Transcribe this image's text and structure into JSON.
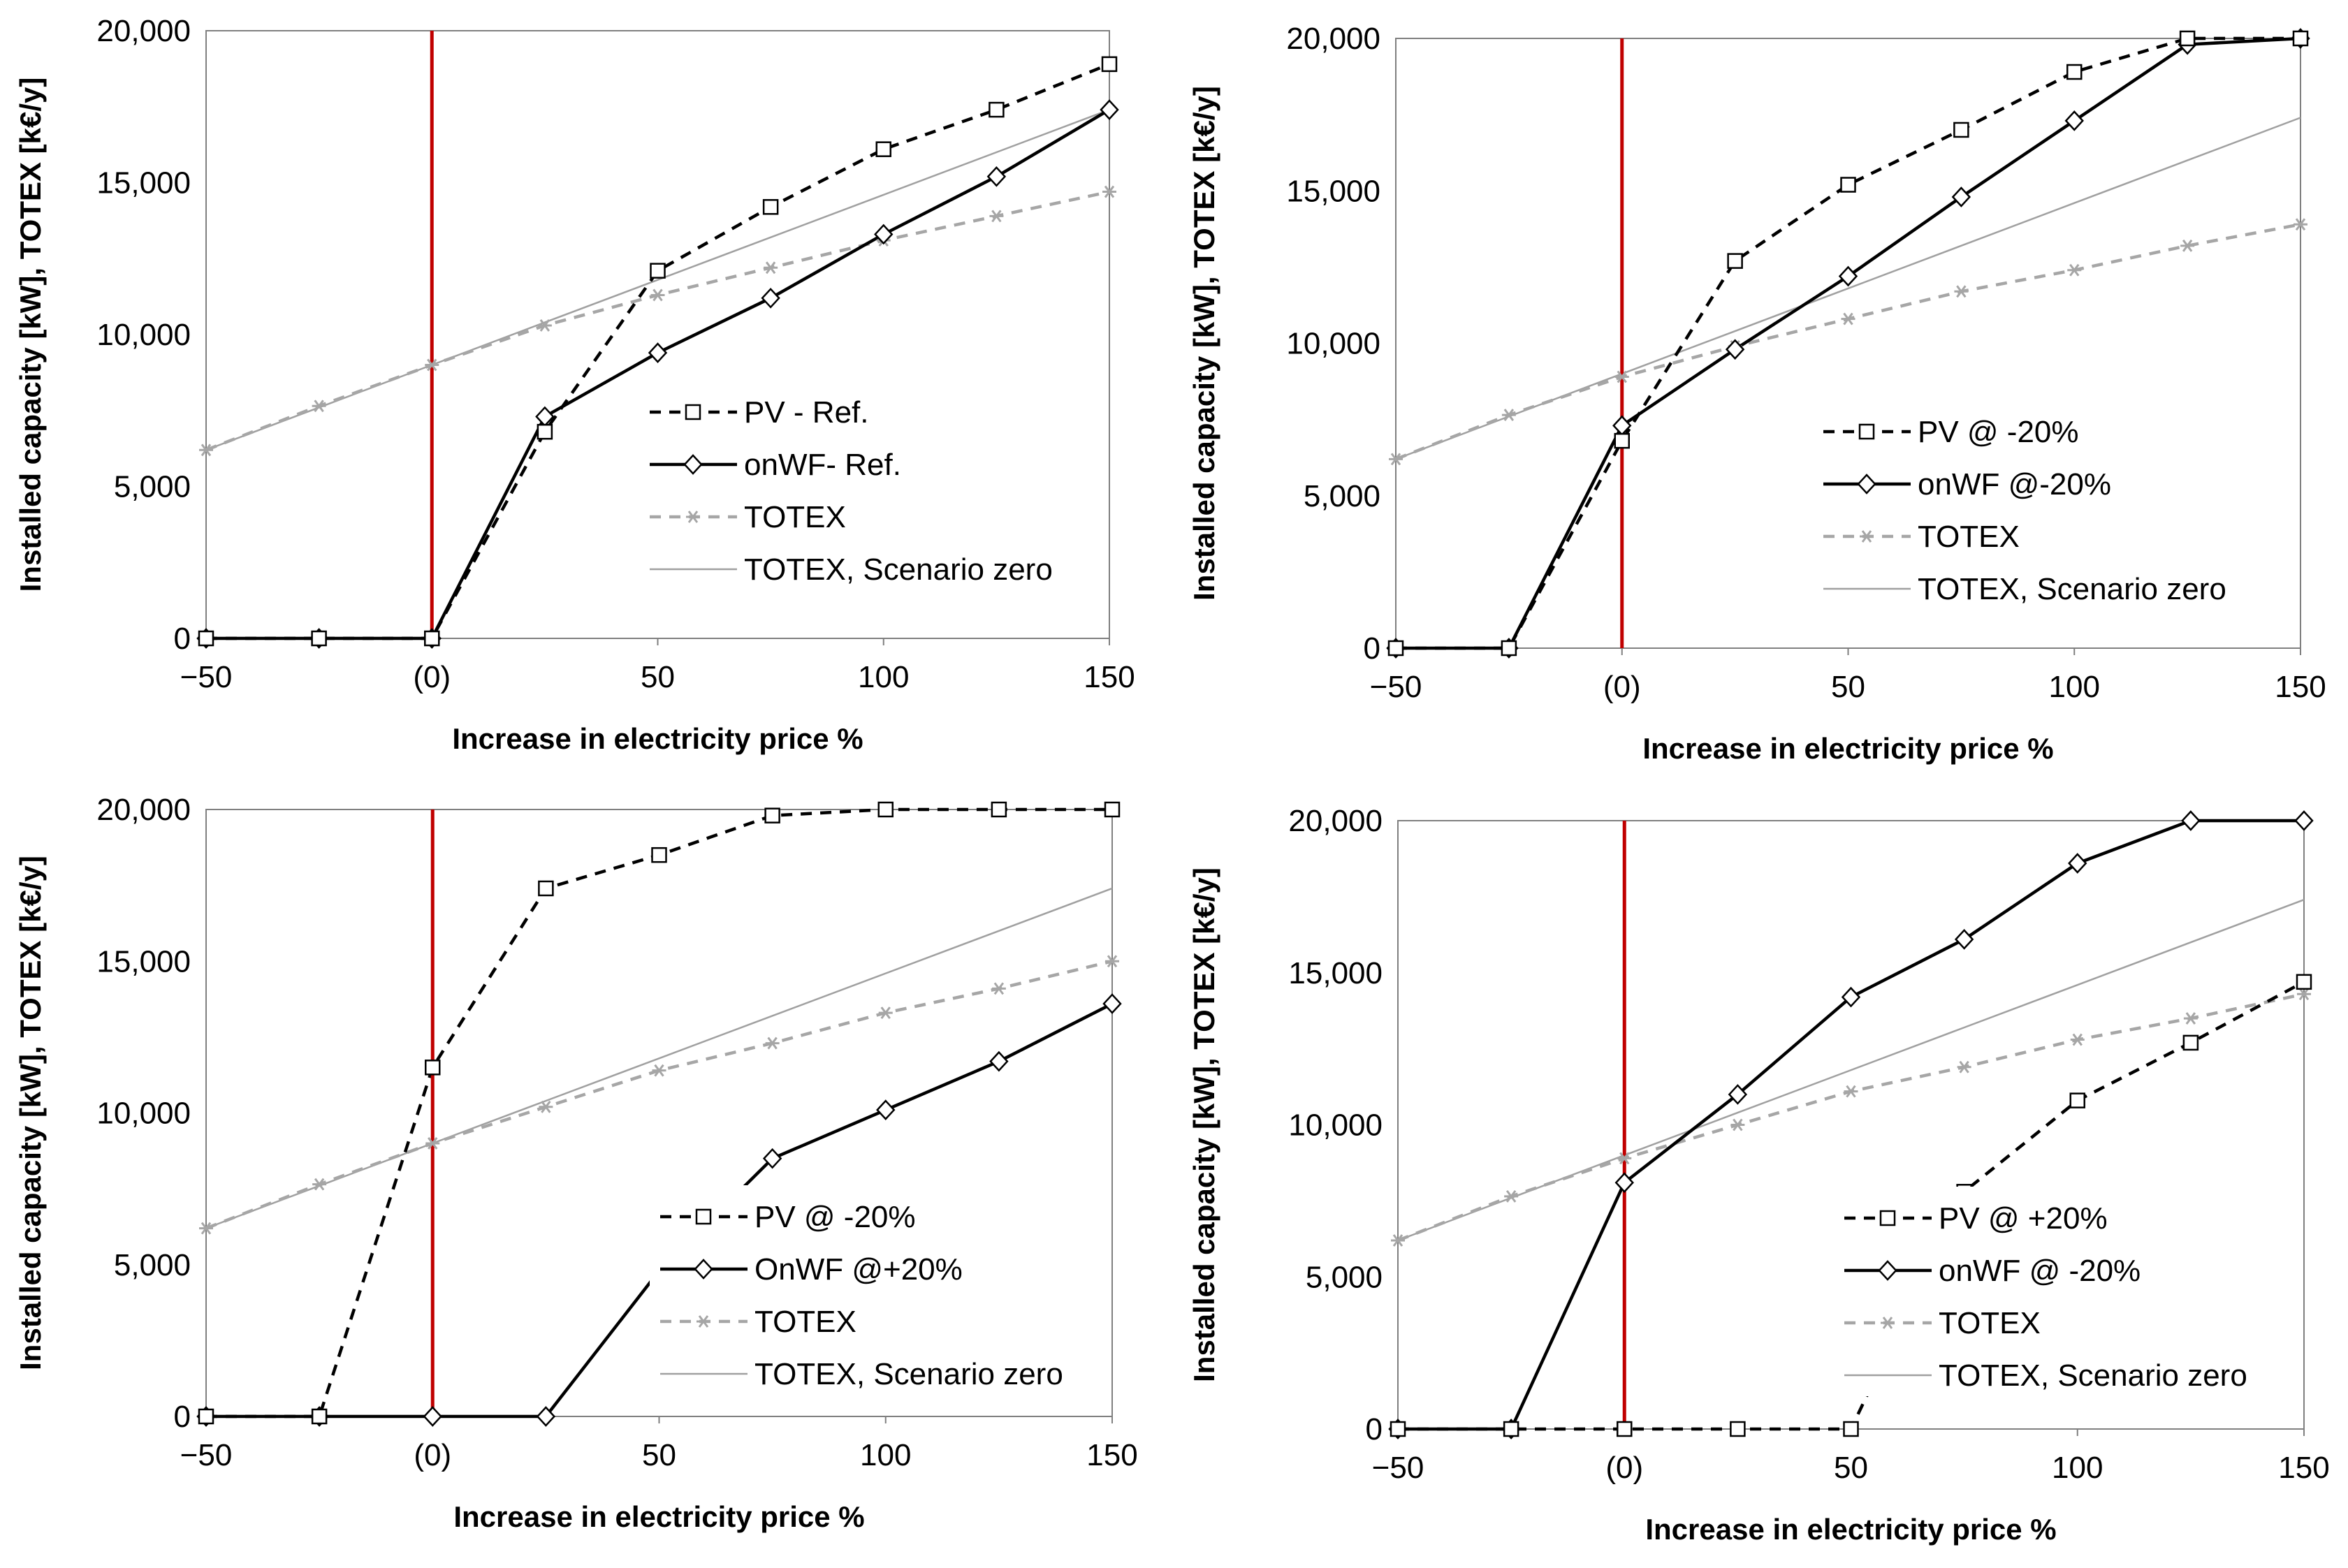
{
  "colors": {
    "black": "#000000",
    "dashed_gray": "#a6a6a6",
    "line_gray": "#a0a0a0",
    "reference_red": "#c00000",
    "axis_gray": "#7f7f7f"
  },
  "chart_data": [
    {
      "type": "line",
      "xlabel": "Increase in electricity price %",
      "ylabel": "Installed capacity [kW], TOTEX [k€/y]",
      "x": [
        -50,
        -25,
        0,
        25,
        50,
        75,
        100,
        125,
        150
      ],
      "x_tick_labels": [
        "−50",
        "(0)",
        "50",
        "100",
        "150"
      ],
      "x_tick_values": [
        -50,
        0,
        50,
        100,
        150
      ],
      "y_tick_labels": [
        "0",
        "5,000",
        "10,000",
        "15,000",
        "20,000"
      ],
      "xlim": [
        -50,
        150
      ],
      "ylim": [
        0,
        20000
      ],
      "reference_line_x": 0,
      "legend_position": "center-right",
      "series": [
        {
          "name": "PV - Ref.",
          "style": "dashed-square",
          "values": [
            0,
            0,
            0,
            6800,
            12100,
            14200,
            16100,
            17400,
            18900
          ]
        },
        {
          "name": "onWF- Ref.",
          "style": "solid-diamond",
          "values": [
            0,
            0,
            0,
            7300,
            9400,
            11200,
            13300,
            15200,
            17400
          ]
        },
        {
          "name": "TOTEX",
          "style": "dashed-asterisk",
          "values": [
            6200,
            7650,
            9000,
            10300,
            11300,
            12200,
            13100,
            13900,
            14700
          ]
        },
        {
          "name": "TOTEX, Scenario zero",
          "style": "thin-line",
          "values": [
            6200,
            7600,
            9000,
            10400,
            11800,
            13200,
            14600,
            16000,
            17400
          ]
        }
      ]
    },
    {
      "type": "line",
      "xlabel": "Increase in electricity price %",
      "ylabel": "Installed capacity [kW], TOTEX [k€/y]",
      "x": [
        -50,
        -25,
        0,
        25,
        50,
        75,
        100,
        125,
        150
      ],
      "x_tick_labels": [
        "−50",
        "(0)",
        "50",
        "100",
        "150"
      ],
      "x_tick_values": [
        -50,
        0,
        50,
        100,
        150
      ],
      "y_tick_labels": [
        "0",
        "5,000",
        "10,000",
        "15,000",
        "20,000"
      ],
      "xlim": [
        -50,
        150
      ],
      "ylim": [
        0,
        20000
      ],
      "reference_line_x": 0,
      "legend_position": "bottom-right",
      "series": [
        {
          "name": "PV @ -20%",
          "style": "dashed-square",
          "values": [
            0,
            0,
            6800,
            12700,
            15200,
            17000,
            18900,
            20000,
            20000
          ]
        },
        {
          "name": "onWF @-20%",
          "style": "solid-diamond",
          "values": [
            0,
            0,
            7300,
            9800,
            12200,
            14800,
            17300,
            19800,
            20000
          ]
        },
        {
          "name": "TOTEX",
          "style": "dashed-asterisk",
          "values": [
            6200,
            7650,
            8900,
            9900,
            10800,
            11700,
            12400,
            13200,
            13900
          ]
        },
        {
          "name": "TOTEX, Scenario zero",
          "style": "thin-line",
          "values": [
            6200,
            7600,
            9000,
            10400,
            11800,
            13200,
            14600,
            16000,
            17400
          ]
        }
      ]
    },
    {
      "type": "line",
      "xlabel": "Increase in electricity price %",
      "ylabel": "Installed capacity [kW], TOTEX [k€/y]",
      "x": [
        -50,
        -25,
        0,
        25,
        50,
        75,
        100,
        125,
        150
      ],
      "x_tick_labels": [
        "−50",
        "(0)",
        "50",
        "100",
        "150"
      ],
      "x_tick_values": [
        -50,
        0,
        50,
        100,
        150
      ],
      "y_tick_labels": [
        "0",
        "5,000",
        "10,000",
        "15,000",
        "20,000"
      ],
      "xlim": [
        -50,
        150
      ],
      "ylim": [
        0,
        20000
      ],
      "reference_line_x": 0,
      "legend_position": "bottom-right",
      "series": [
        {
          "name": "PV @ -20%",
          "style": "dashed-square",
          "values": [
            0,
            0,
            11500,
            17400,
            18500,
            19800,
            20000,
            20000,
            20000
          ]
        },
        {
          "name": "OnWF @+20%",
          "style": "solid-diamond",
          "values": [
            0,
            0,
            0,
            0,
            4800,
            8500,
            10100,
            11700,
            13600
          ]
        },
        {
          "name": "TOTEX",
          "style": "dashed-asterisk",
          "values": [
            6200,
            7650,
            9000,
            10200,
            11400,
            12300,
            13300,
            14100,
            15000
          ]
        },
        {
          "name": "TOTEX, Scenario zero",
          "style": "thin-line",
          "values": [
            6200,
            7600,
            9000,
            10400,
            11800,
            13200,
            14600,
            16000,
            17400
          ]
        }
      ]
    },
    {
      "type": "line",
      "xlabel": "Increase in electricity price %",
      "ylabel": "Installed capacity [kW], TOTEX [k€/y]",
      "x": [
        -50,
        -25,
        0,
        25,
        50,
        75,
        100,
        125,
        150
      ],
      "x_tick_labels": [
        "−50",
        "(0)",
        "50",
        "100",
        "150"
      ],
      "x_tick_values": [
        -50,
        0,
        50,
        100,
        150
      ],
      "y_tick_labels": [
        "0",
        "5,000",
        "10,000",
        "15,000",
        "20,000"
      ],
      "xlim": [
        -50,
        150
      ],
      "ylim": [
        0,
        20000
      ],
      "reference_line_x": 0,
      "legend_position": "bottom-right",
      "series": [
        {
          "name": "PV @ +20%",
          "style": "dashed-square",
          "values": [
            0,
            0,
            0,
            0,
            0,
            7800,
            10800,
            12700,
            14700
          ]
        },
        {
          "name": "onWF @ -20%",
          "style": "solid-diamond",
          "values": [
            0,
            0,
            8100,
            11000,
            14200,
            16100,
            18600,
            20000,
            20000
          ]
        },
        {
          "name": "TOTEX",
          "style": "dashed-asterisk",
          "values": [
            6200,
            7650,
            8900,
            10000,
            11100,
            11900,
            12800,
            13500,
            14300
          ]
        },
        {
          "name": "TOTEX, Scenario zero",
          "style": "thin-line",
          "values": [
            6200,
            7600,
            9000,
            10400,
            11800,
            13200,
            14600,
            16000,
            17400
          ]
        }
      ]
    }
  ]
}
